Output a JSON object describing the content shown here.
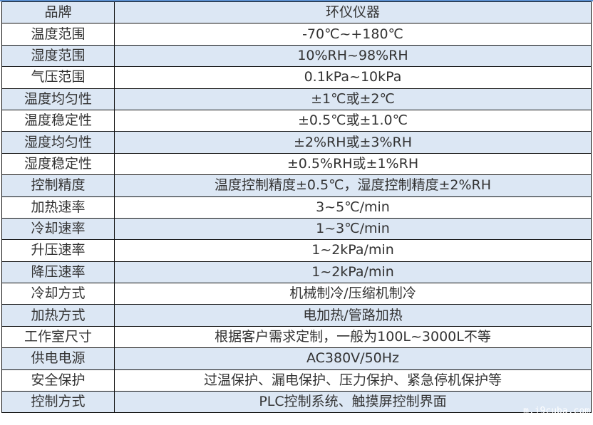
{
  "header": {
    "key": "品牌",
    "value": "环仪仪器"
  },
  "rows": [
    {
      "key": "温度范围",
      "value": "-70℃~+180℃"
    },
    {
      "key": "湿度范围",
      "value": "10%RH~98%RH"
    },
    {
      "key": "气压范围",
      "value": "0.1kPa~10kPa"
    },
    {
      "key": "温度均匀性",
      "value": "±1℃或±2℃"
    },
    {
      "key": "温度稳定性",
      "value": "±0.5℃或±1.0℃"
    },
    {
      "key": "湿度均匀性",
      "value": "±2%RH或±3%RH"
    },
    {
      "key": "湿度稳定性",
      "value": "±0.5%RH或±1%RH"
    },
    {
      "key": "控制精度",
      "value": "温度控制精度±0.5℃，湿度控制精度±2%RH"
    },
    {
      "key": "加热速率",
      "value": "3~5℃/min"
    },
    {
      "key": "冷却速率",
      "value": "1~3℃/min"
    },
    {
      "key": "升压速率",
      "value": "1~2kPa/min"
    },
    {
      "key": "降压速率",
      "value": "1~2kPa/min"
    },
    {
      "key": "冷却方式",
      "value": "机械制冷/压缩机制冷"
    },
    {
      "key": "加热方式",
      "value": "电加热/管路加热"
    },
    {
      "key": "工作室尺寸",
      "value": "根据客户需求定制，一般为100L~3000L不等"
    },
    {
      "key": "供电电源",
      "value": "AC380V/50Hz"
    },
    {
      "key": "安全保护",
      "value": "过温保护、漏电保护、压力保护、紧急停机保护等"
    },
    {
      "key": "控制方式",
      "value": "PLC控制系统、触摸屏控制界面"
    }
  ],
  "watermark": "m.j9cuba.com",
  "colors": {
    "row_alt": "#dce7f4",
    "border": "#111111"
  }
}
